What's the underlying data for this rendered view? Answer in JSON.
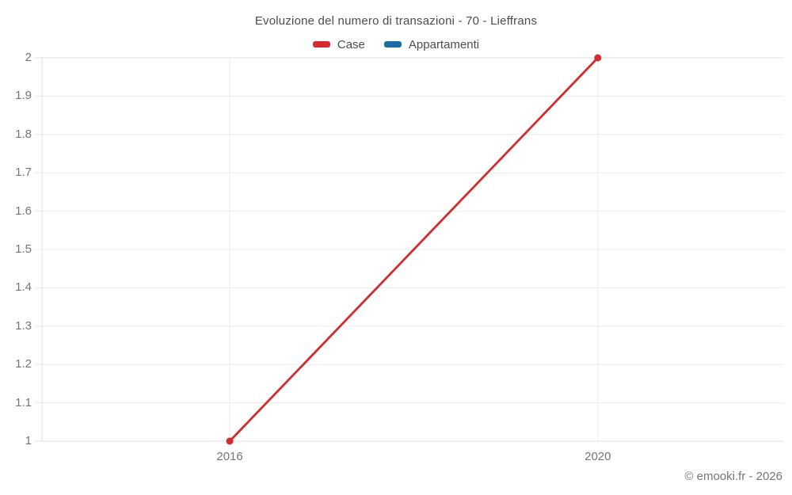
{
  "footer": "© emooki.fr - 2026",
  "colors": {
    "case_red": "#d32b2e",
    "appartamenti_blue": "#1a6d9e",
    "gridline": "#ececec",
    "axis_line": "#e0e0e0",
    "tick_text": "#757575",
    "title_text": "#4d4d4d"
  },
  "chart_data": {
    "type": "line",
    "title": "Evoluzione del numero di transazioni - 70 - Lieffrans",
    "x": [
      2016,
      2020
    ],
    "xticks": [
      "2016",
      "2020"
    ],
    "yticks": [
      2,
      1.9,
      1.8,
      1.7,
      1.6,
      1.5,
      1.4,
      1.3,
      1.2,
      1.1,
      1
    ],
    "ylim": [
      1,
      2
    ],
    "series": [
      {
        "name": "Case",
        "color": "#d32b2e",
        "values": [
          1,
          2
        ]
      },
      {
        "name": "Appartamenti",
        "color": "#1a6d9e",
        "values": []
      }
    ],
    "grid": true,
    "legend_position": "top"
  }
}
